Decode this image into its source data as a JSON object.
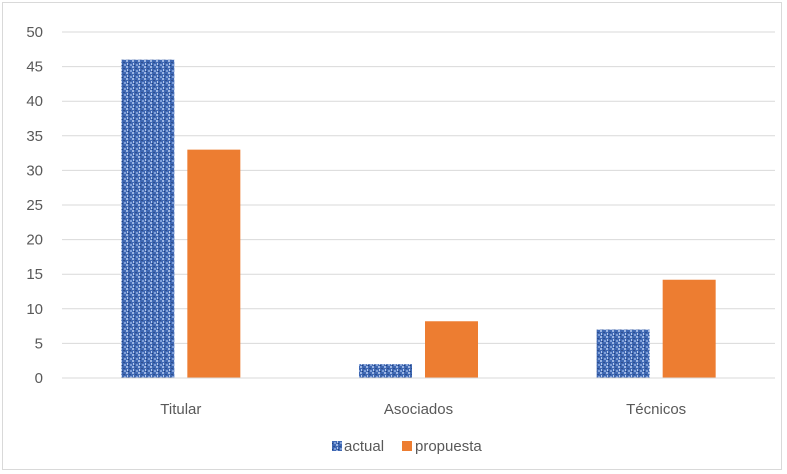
{
  "chart_data": {
    "type": "bar",
    "categories": [
      "Titular",
      "Asociados",
      "Técnicos"
    ],
    "series": [
      {
        "name": "actual",
        "values": [
          46,
          2,
          7
        ],
        "color": "#4472c4",
        "pattern": "textured-blue"
      },
      {
        "name": "propuesta",
        "values": [
          33,
          8.2,
          14.2
        ],
        "color": "#ed7d31"
      }
    ],
    "ylim": [
      0,
      50
    ],
    "yticks": [
      0,
      5,
      10,
      15,
      20,
      25,
      30,
      35,
      40,
      45,
      50
    ],
    "grid": true,
    "legend_position": "bottom"
  }
}
